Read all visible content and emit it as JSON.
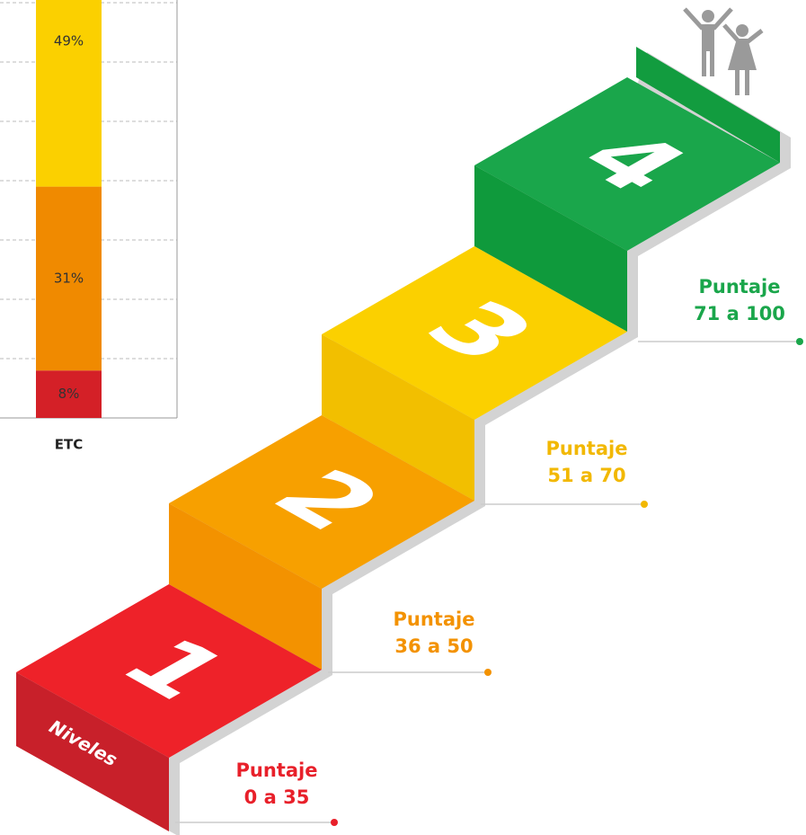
{
  "chart_data": {
    "type": "bar",
    "stacked": true,
    "categories": [
      "ETC"
    ],
    "series": [
      {
        "color": "#d42027",
        "values": [
          8
        ],
        "value_labels": [
          "8%"
        ]
      },
      {
        "color": "#f08a00",
        "values": [
          31
        ],
        "value_labels": [
          "31%"
        ]
      },
      {
        "color": "#fbd000",
        "values": [
          49
        ],
        "value_labels": [
          "49%"
        ]
      }
    ],
    "ylim": [
      0,
      100
    ],
    "yticks": [
      10,
      20,
      30,
      40,
      50,
      60,
      70
    ],
    "grid": true
  },
  "footer": "Niveles",
  "steps": [
    {
      "level": 1,
      "label": "Puntaje",
      "range": "0 a 35",
      "color": "#e8202a"
    },
    {
      "level": 2,
      "label": "Puntaje",
      "range": "36 a 50",
      "color": "#f39200"
    },
    {
      "level": 3,
      "label": "Puntaje",
      "range": "51 a 70",
      "color": "#f2b800"
    },
    {
      "level": 4,
      "label": "Puntaje",
      "range": "71 a 100",
      "color": "#1aa64b"
    }
  ]
}
